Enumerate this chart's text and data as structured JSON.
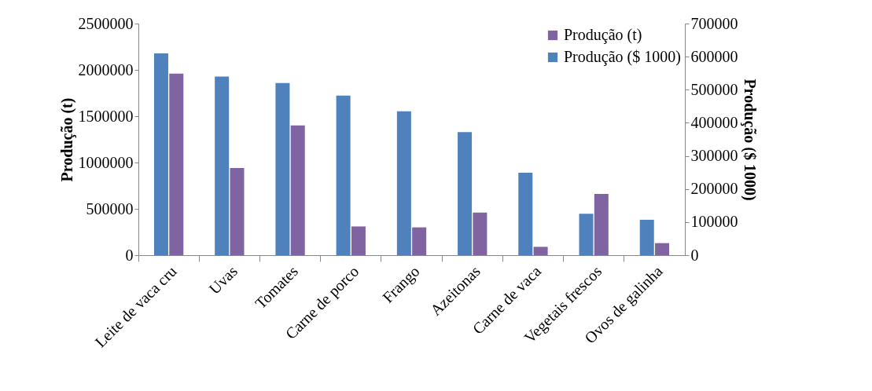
{
  "chart_data": {
    "type": "bar",
    "ylabel": "Produção (t)",
    "y2label": "Produção ($ 1000)",
    "categories": [
      "Leite de vaca cru",
      "Uvas",
      "Tomates",
      "Carne de porco",
      "Frango",
      "Azeitonas",
      "Carne de  vaca",
      "Vegetais frescos",
      "Ovos de galinha"
    ],
    "series": [
      {
        "name": "Produção (t)",
        "color": "#8064a2",
        "values": [
          1960000,
          940000,
          1400000,
          310000,
          300000,
          460000,
          90000,
          660000,
          130000
        ]
      },
      {
        "name": "Produção ($ 1000)",
        "color": "#4f81bd",
        "axis": "y2",
        "values": [
          610000,
          540000,
          520000,
          482000,
          435000,
          372000,
          249000,
          125000,
          107000
        ]
      }
    ],
    "ylim": [
      0,
      2500000
    ],
    "yticks": [
      0,
      500000,
      1000000,
      1500000,
      2000000,
      2500000
    ],
    "y2lim": [
      0,
      700000
    ],
    "y2ticks": [
      0,
      100000,
      200000,
      300000,
      400000,
      500000,
      600000,
      700000
    ],
    "legend": "top right",
    "grid": false
  }
}
